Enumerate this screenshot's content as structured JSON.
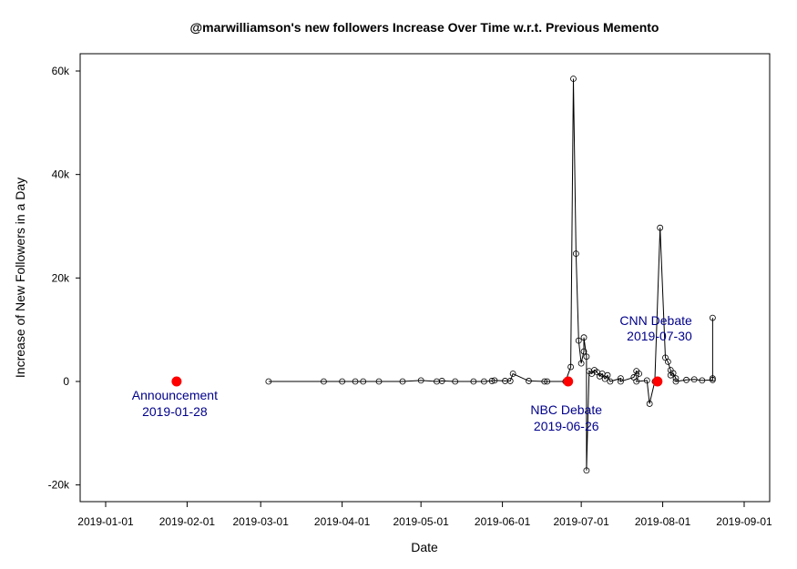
{
  "chart_data": {
    "type": "scatter",
    "title": "@marwilliamson's new followers Increase Over Time w.r.t. Previous Memento",
    "xlabel": "Date",
    "ylabel": "Increase of New Followers in a Day",
    "x_ticks": [
      "2019-01-01",
      "2019-02-01",
      "2019-03-01",
      "2019-04-01",
      "2019-05-01",
      "2019-06-01",
      "2019-07-01",
      "2019-08-01",
      "2019-09-01"
    ],
    "y_ticks": [
      {
        "value": -20000,
        "label": "-20k"
      },
      {
        "value": 0,
        "label": "0"
      },
      {
        "value": 20000,
        "label": "20k"
      },
      {
        "value": 40000,
        "label": "40k"
      },
      {
        "value": 60000,
        "label": "60k"
      }
    ],
    "xlim": [
      "2019-01-01",
      "2019-09-01"
    ],
    "ylim": [
      -22000,
      63000
    ],
    "grid": false,
    "series": [
      {
        "style": "open-circles-connected",
        "color": "#000000",
        "points": [
          [
            "2019-03-04",
            0
          ],
          [
            "2019-03-25",
            0
          ],
          [
            "2019-04-01",
            0
          ],
          [
            "2019-04-06",
            0
          ],
          [
            "2019-04-09",
            0
          ],
          [
            "2019-04-15",
            0
          ],
          [
            "2019-04-24",
            0
          ],
          [
            "2019-05-01",
            200
          ],
          [
            "2019-05-07",
            0
          ],
          [
            "2019-05-09",
            100
          ],
          [
            "2019-05-14",
            0
          ],
          [
            "2019-05-21",
            0
          ],
          [
            "2019-05-25",
            0
          ],
          [
            "2019-05-28",
            100
          ],
          [
            "2019-05-29",
            200
          ],
          [
            "2019-06-02",
            100
          ],
          [
            "2019-06-04",
            100
          ],
          [
            "2019-06-05",
            1500
          ],
          [
            "2019-06-11",
            100
          ],
          [
            "2019-06-17",
            0
          ],
          [
            "2019-06-18",
            0
          ],
          [
            "2019-06-25",
            0
          ],
          [
            "2019-06-27",
            2800
          ],
          [
            "2019-06-28",
            58500
          ],
          [
            "2019-06-29",
            24700
          ],
          [
            "2019-06-30",
            7900
          ],
          [
            "2019-07-01",
            3500
          ],
          [
            "2019-07-02",
            5800
          ],
          [
            "2019-07-02",
            8500
          ],
          [
            "2019-07-03",
            4800
          ],
          [
            "2019-07-03",
            -17200
          ],
          [
            "2019-07-04",
            2000
          ],
          [
            "2019-07-05",
            1500
          ],
          [
            "2019-07-06",
            2200
          ],
          [
            "2019-07-07",
            1800
          ],
          [
            "2019-07-08",
            1000
          ],
          [
            "2019-07-09",
            1500
          ],
          [
            "2019-07-10",
            500
          ],
          [
            "2019-07-11",
            1200
          ],
          [
            "2019-07-12",
            0
          ],
          [
            "2019-07-16",
            600
          ],
          [
            "2019-07-16",
            0
          ],
          [
            "2019-07-21",
            800
          ],
          [
            "2019-07-22",
            2000
          ],
          [
            "2019-07-23",
            1500
          ],
          [
            "2019-07-22",
            0
          ],
          [
            "2019-07-26",
            200
          ],
          [
            "2019-07-27",
            -4300
          ],
          [
            "2019-07-29",
            0
          ],
          [
            "2019-07-31",
            29700
          ],
          [
            "2019-08-02",
            4600
          ],
          [
            "2019-08-03",
            3800
          ],
          [
            "2019-08-04",
            2200
          ],
          [
            "2019-08-04",
            1200
          ],
          [
            "2019-08-05",
            1600
          ],
          [
            "2019-08-06",
            600
          ],
          [
            "2019-08-06",
            0
          ],
          [
            "2019-08-10",
            300
          ],
          [
            "2019-08-13",
            400
          ],
          [
            "2019-08-16",
            200
          ],
          [
            "2019-08-20",
            300
          ],
          [
            "2019-08-20",
            600
          ],
          [
            "2019-08-20",
            12300
          ]
        ]
      }
    ],
    "events": [
      {
        "date": "2019-01-28",
        "value": 0,
        "color": "#ff0000",
        "label": "Announcement",
        "date_label": "2019-01-28",
        "label_position": "below"
      },
      {
        "date": "2019-06-26",
        "value": 0,
        "color": "#ff0000",
        "label": "NBC Debate",
        "date_label": "2019-06-26",
        "label_position": "below"
      },
      {
        "date": "2019-07-30",
        "value": 0,
        "color": "#ff0000",
        "label": "CNN Debate",
        "date_label": "2019-07-30",
        "label_position": "above"
      }
    ],
    "annotation_text_color": "#00008b"
  }
}
